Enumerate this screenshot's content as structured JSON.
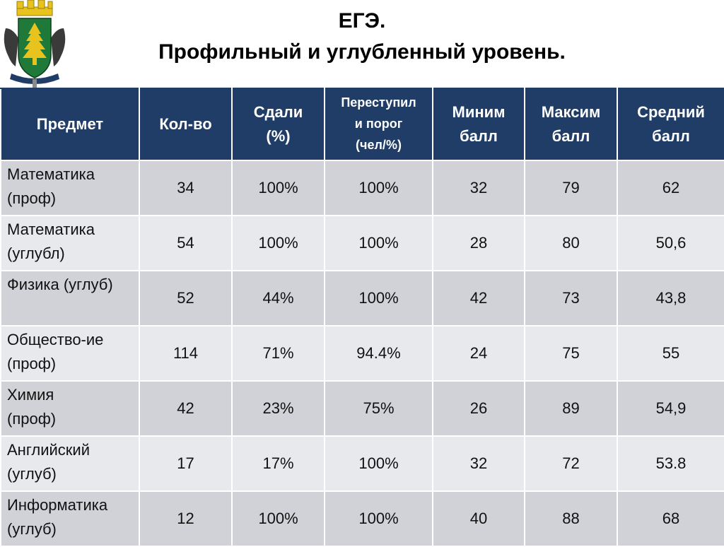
{
  "header": {
    "title_line1": "ЕГЭ.",
    "title_line2": "Профильный и углубленный уровень."
  },
  "colors": {
    "header_bg": "#1f3d66",
    "row_dark": "#d0d2d8",
    "row_light": "#e8e9ed",
    "emblem_green": "#1f7a3a",
    "emblem_gold": "#e8c31e"
  },
  "emblem": {
    "icon": "coat-of-arms-icon"
  },
  "table": {
    "columns": [
      {
        "line1": "Предмет",
        "line2": "",
        "line3": ""
      },
      {
        "line1": "Кол-во",
        "line2": "",
        "line3": ""
      },
      {
        "line1": "Сдали",
        "line2": "(%)",
        "line3": ""
      },
      {
        "line1": "Переступил",
        "line2": "и порог",
        "line3": "(чел/%)"
      },
      {
        "line1": "Миним",
        "line2": "балл",
        "line3": ""
      },
      {
        "line1": "Максим",
        "line2": "балл",
        "line3": ""
      },
      {
        "line1": "Средний",
        "line2": "балл",
        "line3": ""
      }
    ],
    "rows": [
      {
        "subject1": "Математика",
        "subject2": "(проф)",
        "count": "34",
        "passed": "100%",
        "threshold": "100%",
        "min": "32",
        "max": "79",
        "avg": "62"
      },
      {
        "subject1": "Математика",
        "subject2": "(углубл)",
        "count": "54",
        "passed": "100%",
        "threshold": "100%",
        "min": "28",
        "max": "80",
        "avg": "50,6"
      },
      {
        "subject1": "Физика (углуб)",
        "subject2": "",
        "count": "52",
        "passed": "44%",
        "threshold": "100%",
        "min": "42",
        "max": "73",
        "avg": "43,8"
      },
      {
        "subject1": "Общество-ие",
        "subject2": "(проф)",
        "count": "114",
        "passed": "71%",
        "threshold": "94.4%",
        "min": "24",
        "max": "75",
        "avg": "55"
      },
      {
        "subject1": "Химия",
        "subject2": "(проф)",
        "count": "42",
        "passed": "23%",
        "threshold": "75%",
        "min": "26",
        "max": "89",
        "avg": "54,9"
      },
      {
        "subject1": "Английский",
        "subject2": "(углуб)",
        "count": "17",
        "passed": "17%",
        "threshold": "100%",
        "min": "32",
        "max": "72",
        "avg": "53.8"
      },
      {
        "subject1": "Информатика",
        "subject2": "(углуб)",
        "count": "12",
        "passed": "100%",
        "threshold": "100%",
        "min": "40",
        "max": "88",
        "avg": "68"
      }
    ]
  }
}
